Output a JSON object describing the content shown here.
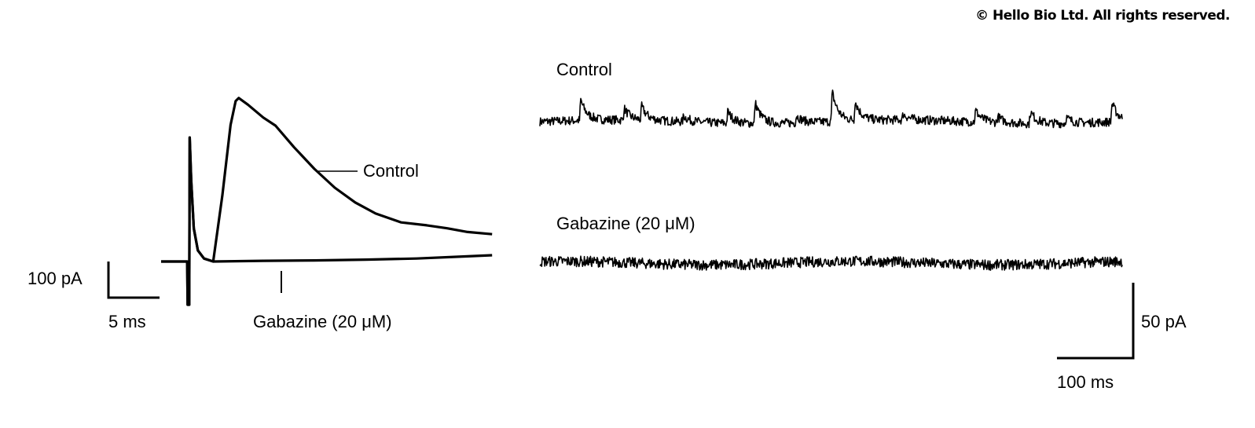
{
  "copyright": "© Hello Bio Ltd. All rights reserved.",
  "chart_data": [
    {
      "type": "line",
      "panel": "evoked-currents",
      "xunit": "ms",
      "yunit": "pA",
      "scale_bars": {
        "x_label": "5 ms",
        "x_value": 5,
        "y_label": "100 pA",
        "y_value": 100
      },
      "series": [
        {
          "name": "Control",
          "points": [
            [
              0,
              0
            ],
            [
              2.55,
              0
            ],
            [
              2.6,
              -117
            ],
            [
              2.75,
              -117
            ],
            [
              2.8,
              336
            ],
            [
              2.95,
              220
            ],
            [
              3.2,
              90
            ],
            [
              3.6,
              30
            ],
            [
              4.2,
              8
            ],
            [
              5.1,
              0
            ],
            [
              6.0,
              180
            ],
            [
              6.8,
              370
            ],
            [
              7.3,
              435
            ],
            [
              7.6,
              443
            ],
            [
              8.5,
              425
            ],
            [
              10,
              390
            ],
            [
              11.2,
              368
            ],
            [
              13,
              310
            ],
            [
              15,
              251
            ],
            [
              17,
              200
            ],
            [
              19,
              160
            ],
            [
              21,
              130
            ],
            [
              23.5,
              106
            ],
            [
              26,
              98
            ],
            [
              28,
              90
            ],
            [
              30,
              80
            ],
            [
              32.4,
              74
            ]
          ]
        },
        {
          "name": "Gabazine (20 μM)",
          "points": [
            [
              0,
              0
            ],
            [
              2.55,
              0
            ],
            [
              2.6,
              -117
            ],
            [
              2.75,
              -117
            ],
            [
              2.8,
              336
            ],
            [
              2.95,
              220
            ],
            [
              3.2,
              90
            ],
            [
              3.6,
              30
            ],
            [
              4.2,
              8
            ],
            [
              5.1,
              0
            ],
            [
              10,
              2
            ],
            [
              15,
              3
            ],
            [
              20,
              5
            ],
            [
              25,
              8
            ],
            [
              30,
              14
            ],
            [
              32.4,
              17
            ]
          ]
        }
      ]
    },
    {
      "type": "line",
      "panel": "spontaneous-currents",
      "xunit": "ms",
      "yunit": "pA",
      "xlim": [
        0,
        764
      ],
      "scale_bars": {
        "x_label": "100 ms",
        "x_value": 100,
        "y_label": "50 pA",
        "y_value": 50
      },
      "series": [
        {
          "name": "Control",
          "events": [
            [
              52,
              14
            ],
            [
              109,
              8
            ],
            [
              132,
              9
            ],
            [
              187,
              4
            ],
            [
              245,
              8
            ],
            [
              281,
              14
            ],
            [
              335,
              5
            ],
            [
              382,
              20
            ],
            [
              412,
              13
            ],
            [
              475,
              4
            ],
            [
              570,
              8
            ],
            [
              599,
              4
            ],
            [
              642,
              8
            ],
            [
              689,
              4
            ],
            [
              749,
              13
            ]
          ],
          "noise_pA": 1.5
        },
        {
          "name": "Gabazine (20 μM)",
          "events": [],
          "noise_pA": 1.8
        }
      ]
    }
  ]
}
